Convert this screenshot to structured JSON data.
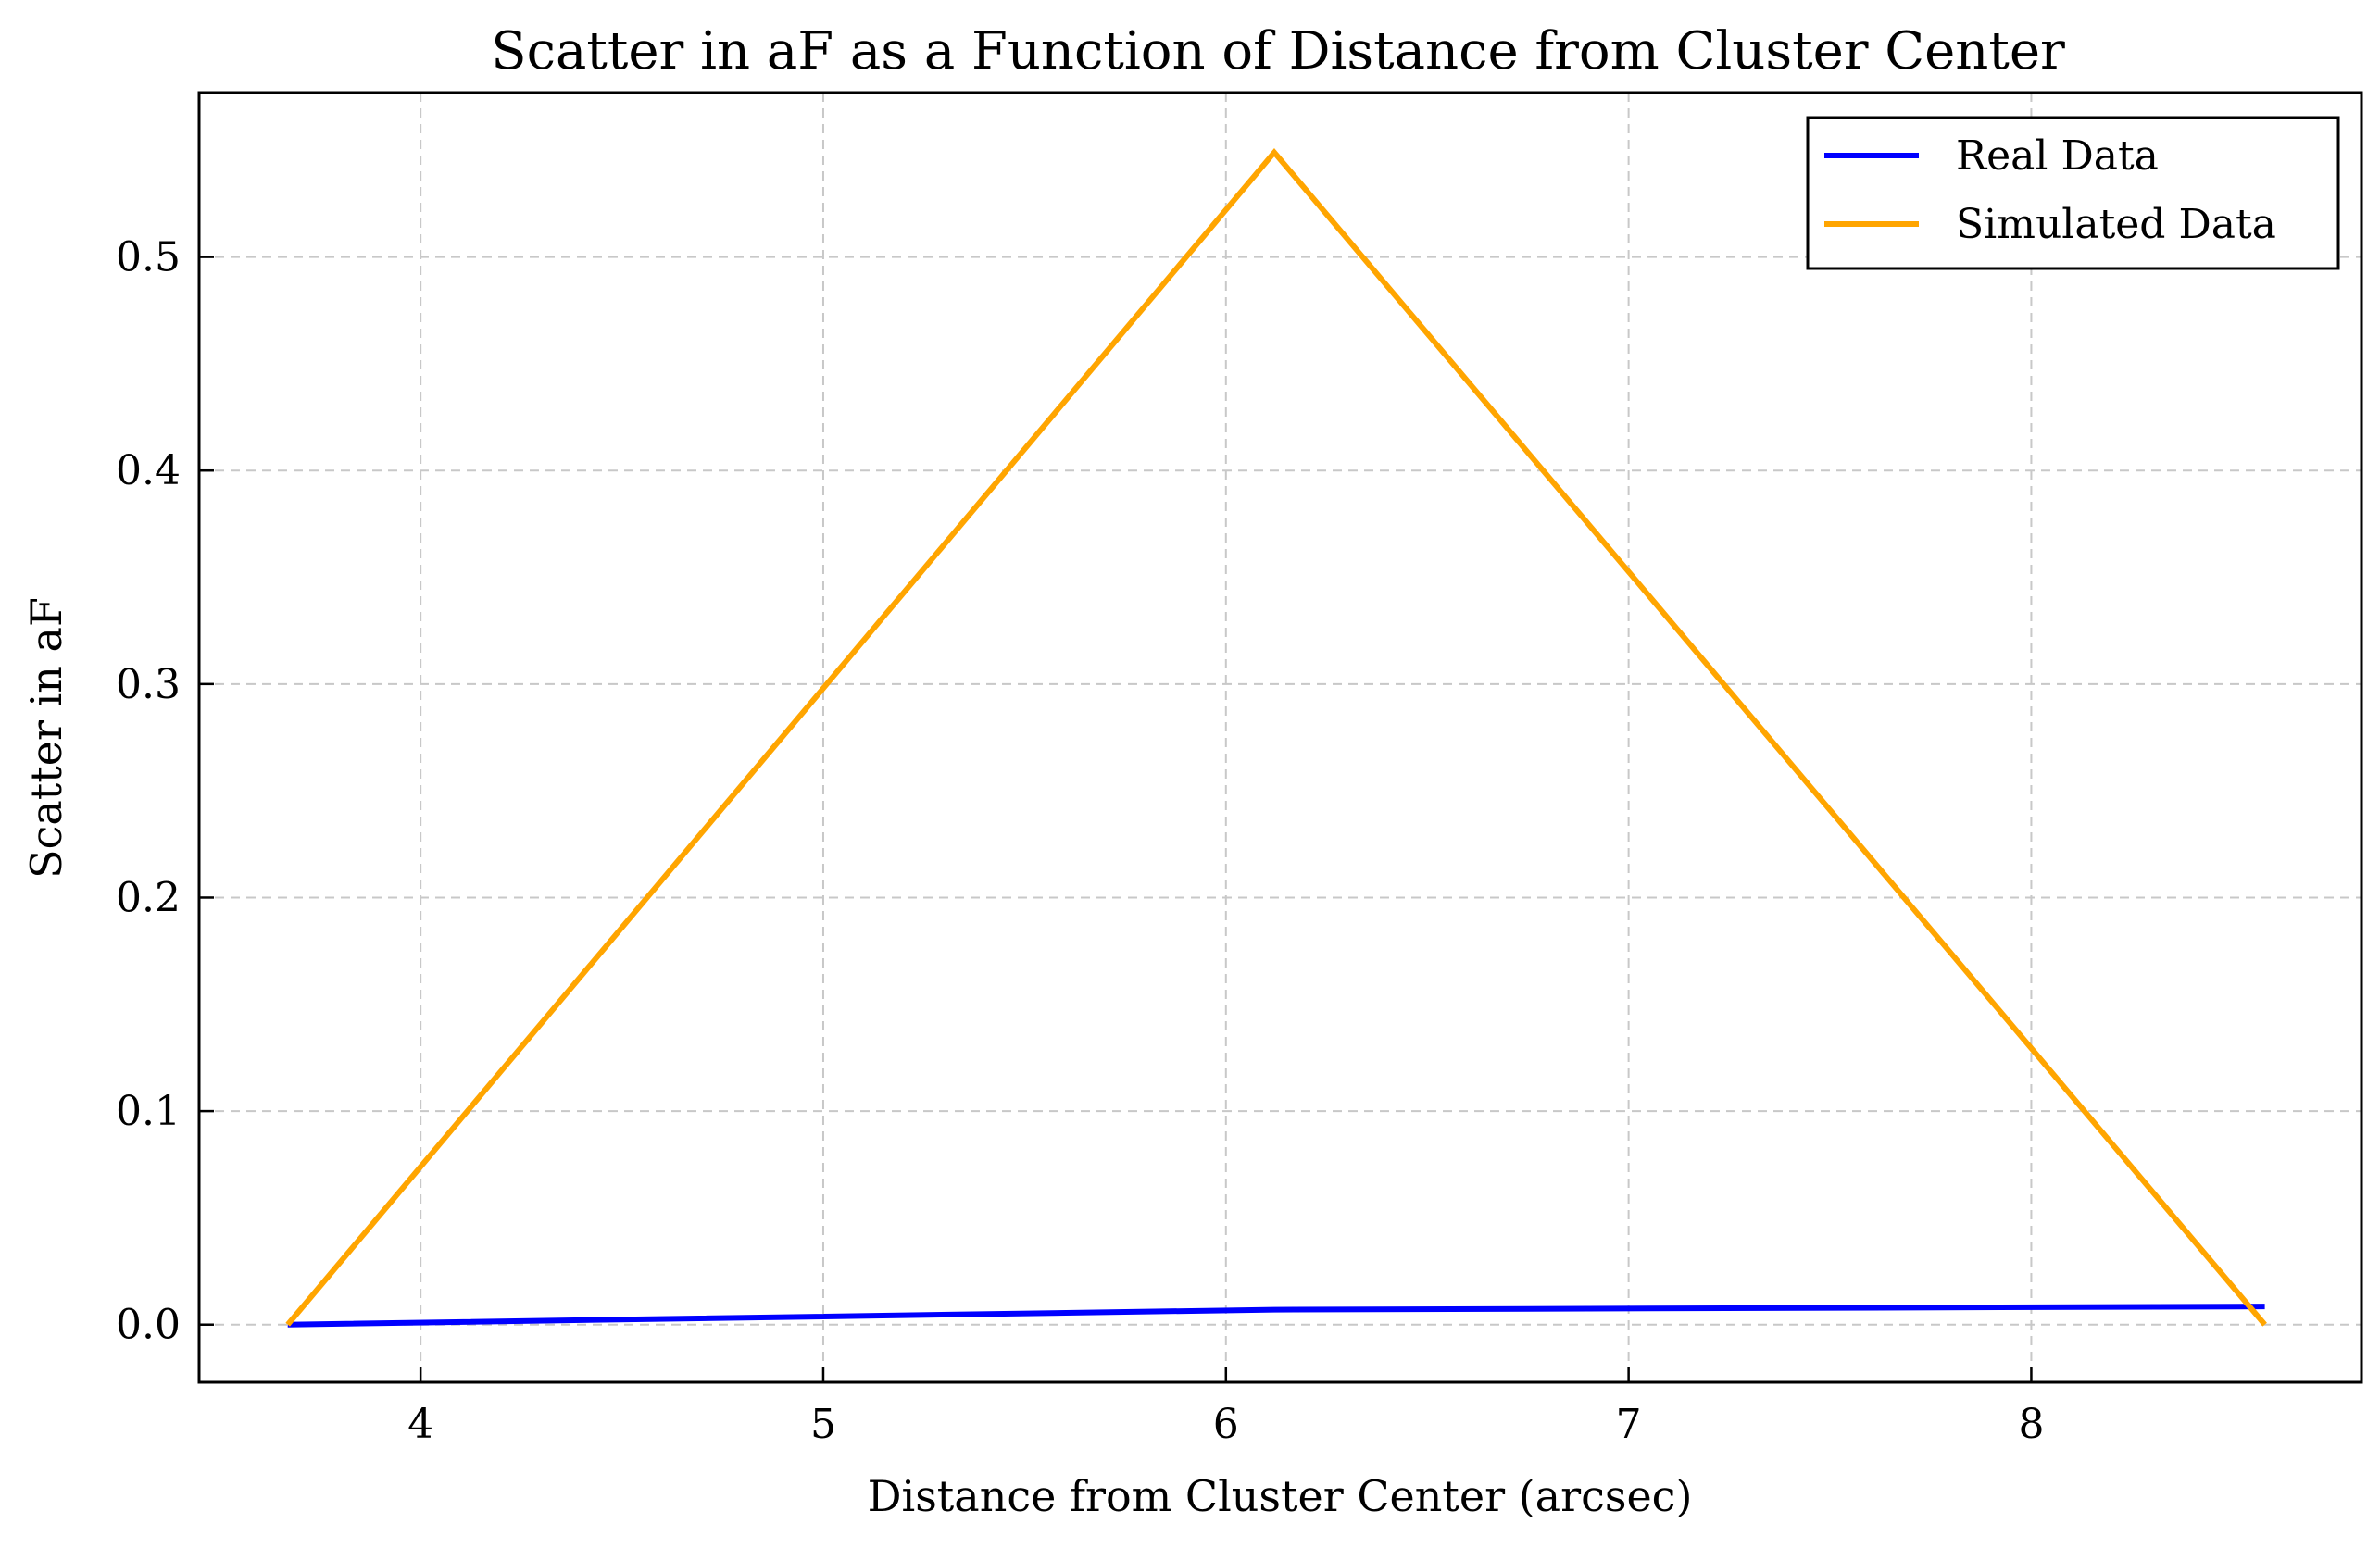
{
  "chart_data": {
    "type": "line",
    "title": "Scatter in aF as a Function of Distance from Cluster Center",
    "xlabel": "Distance from Cluster Center (arcsec)",
    "ylabel": "Scatter in aF",
    "xlim": [
      3.45,
      8.82
    ],
    "ylim": [
      -0.027,
      0.577
    ],
    "xticks": [
      4,
      5,
      6,
      7,
      8
    ],
    "yticks": [
      0.0,
      0.1,
      0.2,
      0.3,
      0.4,
      0.5
    ],
    "xtick_labels": [
      "4",
      "5",
      "6",
      "7",
      "8"
    ],
    "ytick_labels": [
      "0.0",
      "0.1",
      "0.2",
      "0.3",
      "0.4",
      "0.5"
    ],
    "grid": true,
    "legend_position": "top-right",
    "series": [
      {
        "name": "Real Data",
        "color": "#0000ff",
        "x": [
          3.67,
          6.12,
          8.58
        ],
        "y": [
          0.0,
          0.007,
          0.0085
        ]
      },
      {
        "name": "Simulated Data",
        "color": "#ffa500",
        "x": [
          3.67,
          6.12,
          8.58
        ],
        "y": [
          0.0,
          0.549,
          0.0
        ]
      }
    ]
  }
}
